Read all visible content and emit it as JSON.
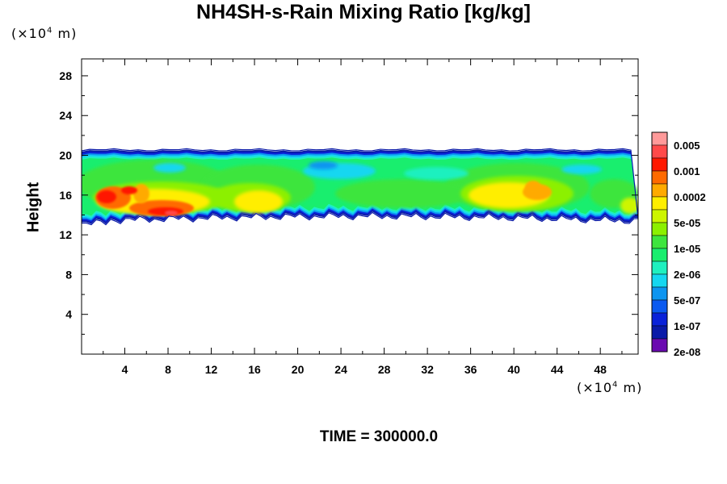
{
  "title": "NH4SH-s-Rain Mixing Ratio [kg/kg]",
  "y_unit": {
    "prefix": "(×10",
    "exp": "4",
    "suffix": " m)"
  },
  "x_unit": {
    "prefix": "(×10",
    "exp": "4",
    "suffix": " m)"
  },
  "time_label": "TIME = 300000.0",
  "chart_data": {
    "type": "heatmap",
    "title": "NH4SH-s-Rain Mixing Ratio [kg/kg]",
    "xlabel": "",
    "ylabel": "Height",
    "x_unit": "×10^4 m",
    "y_unit": "×10^4 m",
    "xlim": [
      0,
      51.5
    ],
    "ylim": [
      0,
      29.7
    ],
    "x_ticks": [
      4,
      8,
      12,
      16,
      20,
      24,
      28,
      32,
      36,
      40,
      44,
      48
    ],
    "y_ticks": [
      4,
      8,
      12,
      16,
      20,
      24,
      28
    ],
    "layer": {
      "bottom_range": [
        13.3,
        14.3
      ],
      "top": 20.3
    },
    "colorbar": {
      "labels": [
        "0.005",
        "0.001",
        "0.0002",
        "5e-05",
        "1e-05",
        "2e-06",
        "5e-07",
        "1e-07",
        "2e-08"
      ],
      "colors": [
        "#ff9a9a",
        "#ff4a4a",
        "#ff1800",
        "#ff6a00",
        "#ffaa00",
        "#ffee00",
        "#cdf500",
        "#8cf000",
        "#3ee53e",
        "#19ee6e",
        "#1ff0bf",
        "#15d7f0",
        "#0d95f0",
        "#0b5af0",
        "#0a22d9",
        "#0a1aa8",
        "#6a0ab0"
      ]
    }
  }
}
